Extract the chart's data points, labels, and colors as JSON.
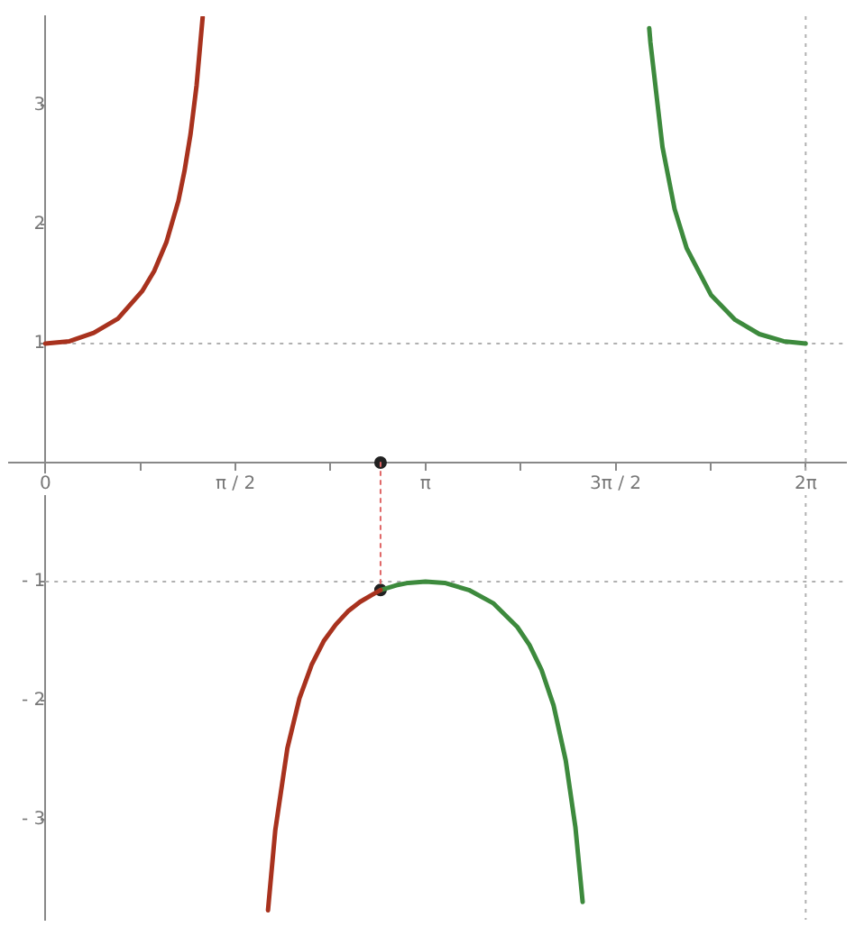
{
  "chart_data": {
    "type": "line",
    "xlim": [
      -0.3,
      6.616
    ],
    "ylim": [
      -3.84,
      3.75
    ],
    "xticks": [
      0,
      {
        "value": 0.7854,
        "label": null
      },
      {
        "value": 1.5708,
        "label": "π / 2"
      },
      {
        "value": 2.3562,
        "label": null
      },
      {
        "value": 3.1416,
        "label": "π"
      },
      {
        "value": 3.927,
        "label": null
      },
      {
        "value": 4.7124,
        "label": "3π / 2"
      },
      {
        "value": 5.4978,
        "label": null
      },
      {
        "value": 6.2832,
        "label": "2π"
      }
    ],
    "yticks": [
      {
        "value": -3,
        "label": "- 3"
      },
      {
        "value": -2,
        "label": "- 2"
      },
      {
        "value": -1,
        "label": "- 1"
      },
      1,
      2,
      3
    ],
    "ref_lines": [
      {
        "axis": "y",
        "value": 1,
        "line_style": "dotted",
        "color": "#b0b0b0"
      },
      {
        "axis": "y",
        "value": -1,
        "line_style": "dotted",
        "color": "#b0b0b0"
      },
      {
        "axis": "x",
        "value": 6.2832,
        "line_style": "dotted",
        "color": "#b0b0b0"
      }
    ],
    "series": [
      {
        "color": "#a8321e",
        "x": [
          0,
          0.2,
          0.4,
          0.6,
          0.8,
          0.9,
          1.0,
          1.1,
          1.15,
          1.2,
          1.25,
          1.3
        ],
        "values": [
          1,
          1.02,
          1.09,
          1.21,
          1.44,
          1.61,
          1.85,
          2.2,
          2.45,
          2.76,
          3.17,
          3.74
        ]
      },
      {
        "color": "#a8321e",
        "x": [
          1.84,
          1.9,
          2.0,
          2.1,
          2.2,
          2.3,
          2.4,
          2.5,
          2.6,
          2.7,
          2.77
        ],
        "values": [
          -3.76,
          -3.09,
          -2.4,
          -1.98,
          -1.7,
          -1.5,
          -1.36,
          -1.25,
          -1.17,
          -1.11,
          -1.07
        ]
      },
      {
        "color": "#3d8a3d",
        "x": [
          2.77,
          2.9,
          3.0,
          3.1416,
          3.3,
          3.5,
          3.7,
          3.9,
          4.0,
          4.1,
          4.2,
          4.3,
          4.38,
          4.44
        ],
        "values": [
          -1.07,
          -1.03,
          -1.01,
          -1,
          -1.01,
          -1.07,
          -1.18,
          -1.38,
          -1.53,
          -1.74,
          -2.04,
          -2.5,
          -3.06,
          -3.69
        ]
      },
      {
        "color": "#3d8a3d",
        "x": [
          4.99,
          5.0,
          5.1,
          5.2,
          5.3,
          5.5,
          5.7,
          5.9,
          6.1,
          6.2832
        ],
        "values": [
          3.65,
          3.53,
          2.65,
          2.13,
          1.8,
          1.41,
          1.2,
          1.08,
          1.02,
          1
        ]
      },
      {
        "color": "#e06666",
        "line_style": "dotted",
        "x": [
          2.77,
          2.77
        ],
        "values": [
          0,
          -1.07
        ]
      },
      {
        "type": "scatter",
        "color": "#222222",
        "marker": "circle",
        "x": [
          2.77,
          2.77
        ],
        "values": [
          0,
          -1.07
        ]
      }
    ]
  }
}
